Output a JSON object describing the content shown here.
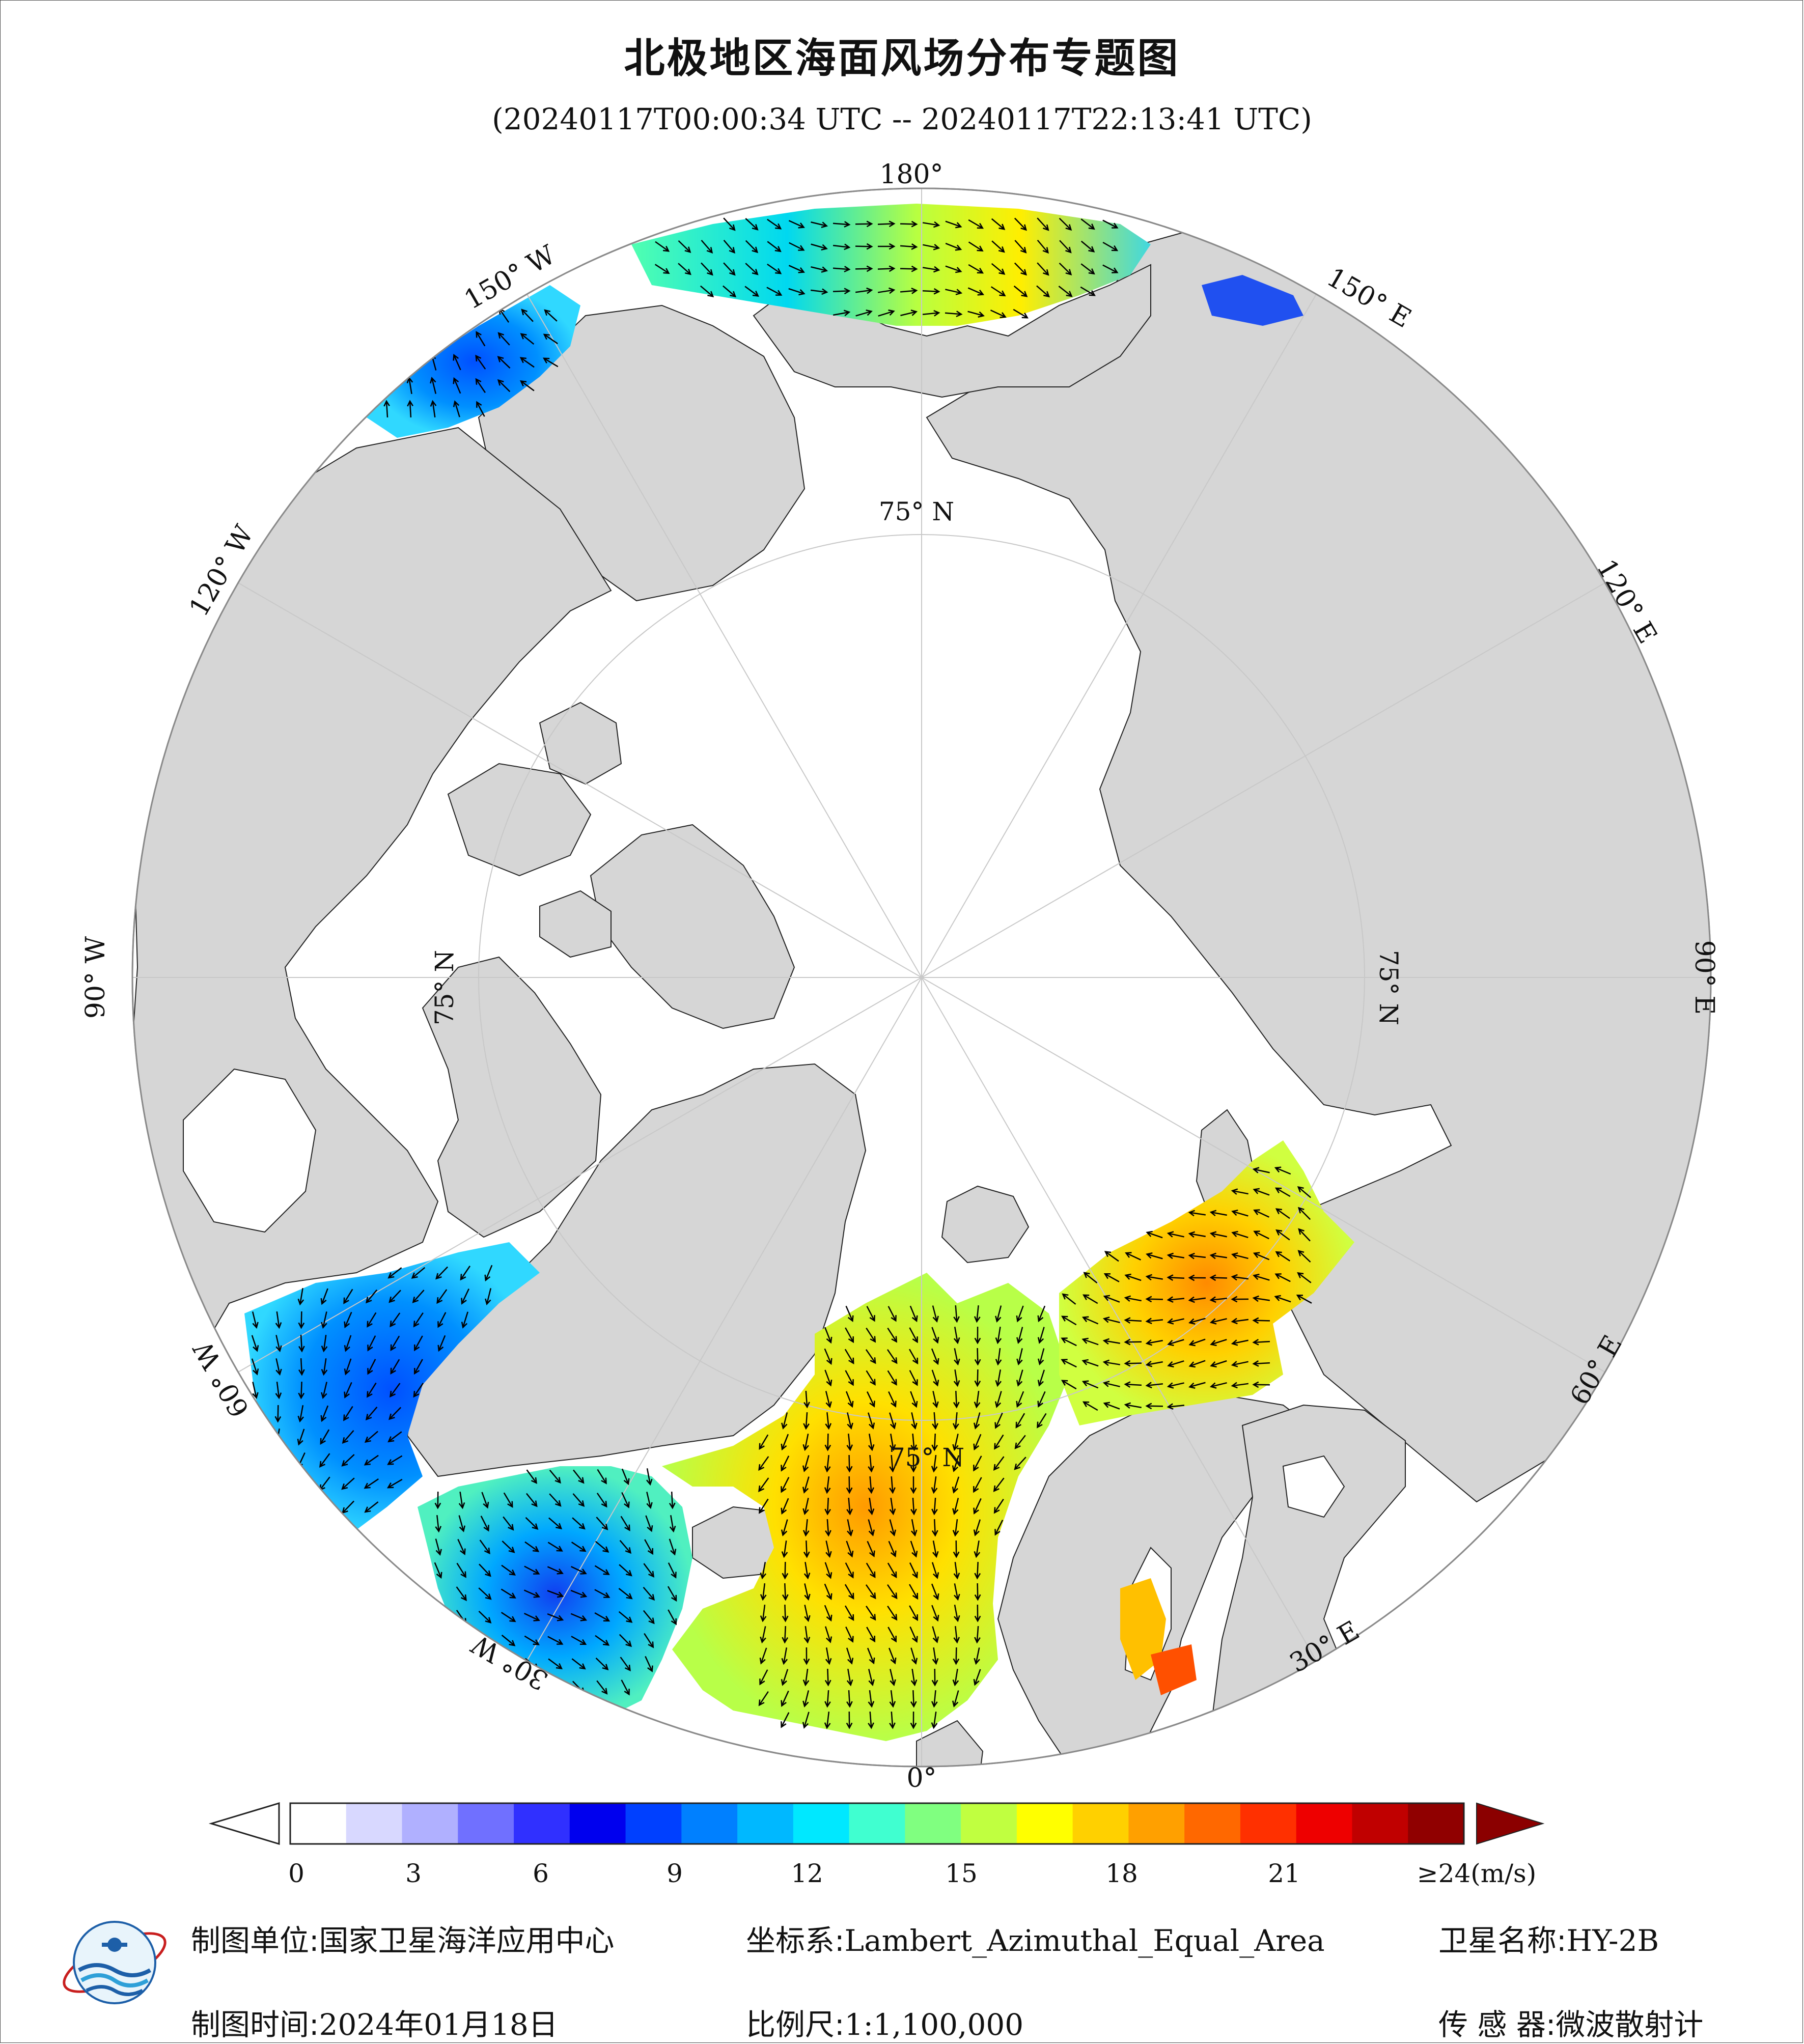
{
  "header": {
    "title": "北极地区海面风场分布专题图",
    "subtitle": "(20240117T00:00:34 UTC -- 20240117T22:13:41 UTC)"
  },
  "map": {
    "meridian_labels": [
      "180°",
      "150° E",
      "120° E",
      "90° E",
      "60° E",
      "30° E",
      "0°",
      "30° W",
      "60° W",
      "90° W",
      "120° W",
      "150° W"
    ],
    "parallel_labels": [
      "75° N",
      "75° N",
      "75° N",
      "75° N"
    ],
    "colors": {
      "ocean": "#ffffff",
      "land": "#d6d6d6",
      "graticule": "#c8c8c8",
      "arrow": "#000000"
    }
  },
  "colorbar": {
    "tick_labels": [
      "0",
      "3",
      "6",
      "9",
      "12",
      "15",
      "18",
      "21",
      "≥24(m/s)"
    ],
    "min": 0,
    "max": 24,
    "unit": "m/s",
    "colors": [
      "#ffffff",
      "#d8d8ff",
      "#b0b0ff",
      "#7070ff",
      "#3030ff",
      "#0000ee",
      "#0040ff",
      "#0080ff",
      "#00b8ff",
      "#00e8ff",
      "#40ffd0",
      "#80ff80",
      "#c0ff40",
      "#ffff00",
      "#ffd000",
      "#ffa000",
      "#ff6800",
      "#ff3000",
      "#ee0000",
      "#c00000",
      "#900000"
    ]
  },
  "footer": {
    "unit_label": "制图单位:",
    "unit_value": "国家卫星海洋应用中心",
    "crs_label": "坐标系:",
    "crs_value": "Lambert_Azimuthal_Equal_Area",
    "satellite_label": "卫星名称:",
    "satellite_value": "HY-2B",
    "date_label": "制图时间:",
    "date_value": "2024年01月18日",
    "scale_label": "比例尺:",
    "scale_value": "1:1,100,000",
    "sensor_label": "传 感 器:",
    "sensor_value": "微波散射计"
  }
}
